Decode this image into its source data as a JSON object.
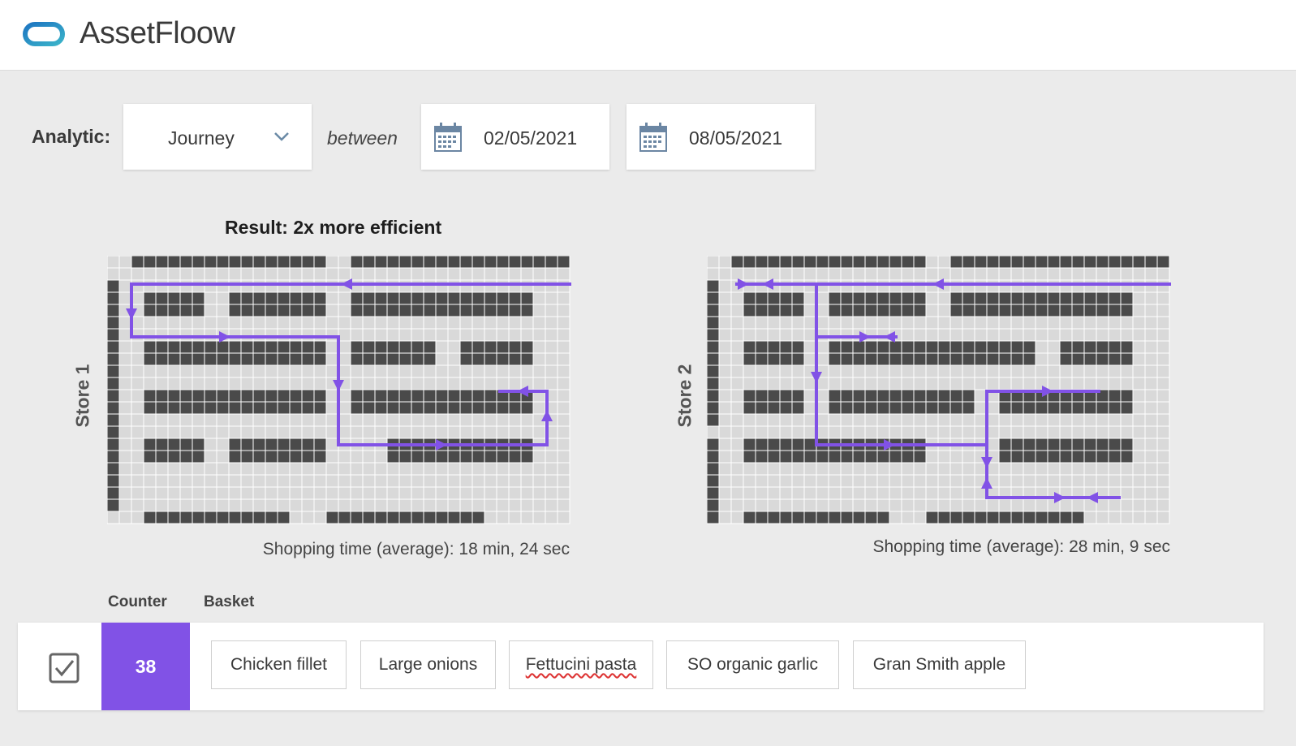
{
  "app": {
    "title": "AssetFloow",
    "logo_icon": "pill-logo-icon"
  },
  "filters": {
    "analytic_label": "Analytic:",
    "analytic_value": "Journey",
    "between_label": "between",
    "start_date": "02/05/2021",
    "end_date": "08/05/2021"
  },
  "result": {
    "title": "Result: 2x more efficient"
  },
  "stores": [
    {
      "label": "Store 1",
      "caption": "Shopping time (average): 18 min, 24 sec"
    },
    {
      "label": "Store 2",
      "caption": "Shopping time (average): 28 min, 9 sec"
    }
  ],
  "basket": {
    "counter_header": "Counter",
    "basket_header": "Basket",
    "checked": true,
    "counter_value": "38",
    "items": [
      "Chicken fillet",
      "Large onions",
      "Fettucini pasta",
      "SO organic garlic",
      "Gran Smith apple"
    ]
  },
  "colors": {
    "accent": "#8152e6",
    "shelf": "#4a4a4a",
    "floor": "#d9d9d9",
    "logo": "#2a8fc9"
  }
}
